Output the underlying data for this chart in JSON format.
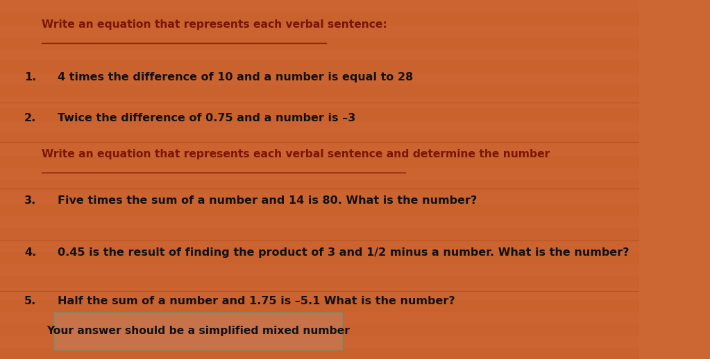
{
  "bg_color": "#cc6633",
  "text_color_dark": "#111111",
  "header_color": "#7a1500",
  "box_color": "#c8724a",
  "title1": "Write an equation that represents each verbal sentence:",
  "title2": "Write an equation that represents each verbal sentence and determine the number",
  "items": [
    {
      "num": "1.",
      "text": "4 times the difference of 10 and a number is equal to 28"
    },
    {
      "num": "2.",
      "text": "Twice the difference of 0.75 and a number is –3"
    }
  ],
  "items2": [
    {
      "num": "3.",
      "text": "Five times the sum of a number and 14 is 80. What is the number?"
    },
    {
      "num": "4.",
      "text": "0.45 is the result of finding the product of 3 and 1/2 minus a number. What is the number?"
    },
    {
      "num": "5.",
      "text": "Half the sum of a number and 1.75 is –5.1 What is the number?"
    }
  ],
  "box_text": "Your answer should be a simplified mixed number",
  "figwidth": 10.23,
  "figheight": 5.18,
  "dpi": 100
}
